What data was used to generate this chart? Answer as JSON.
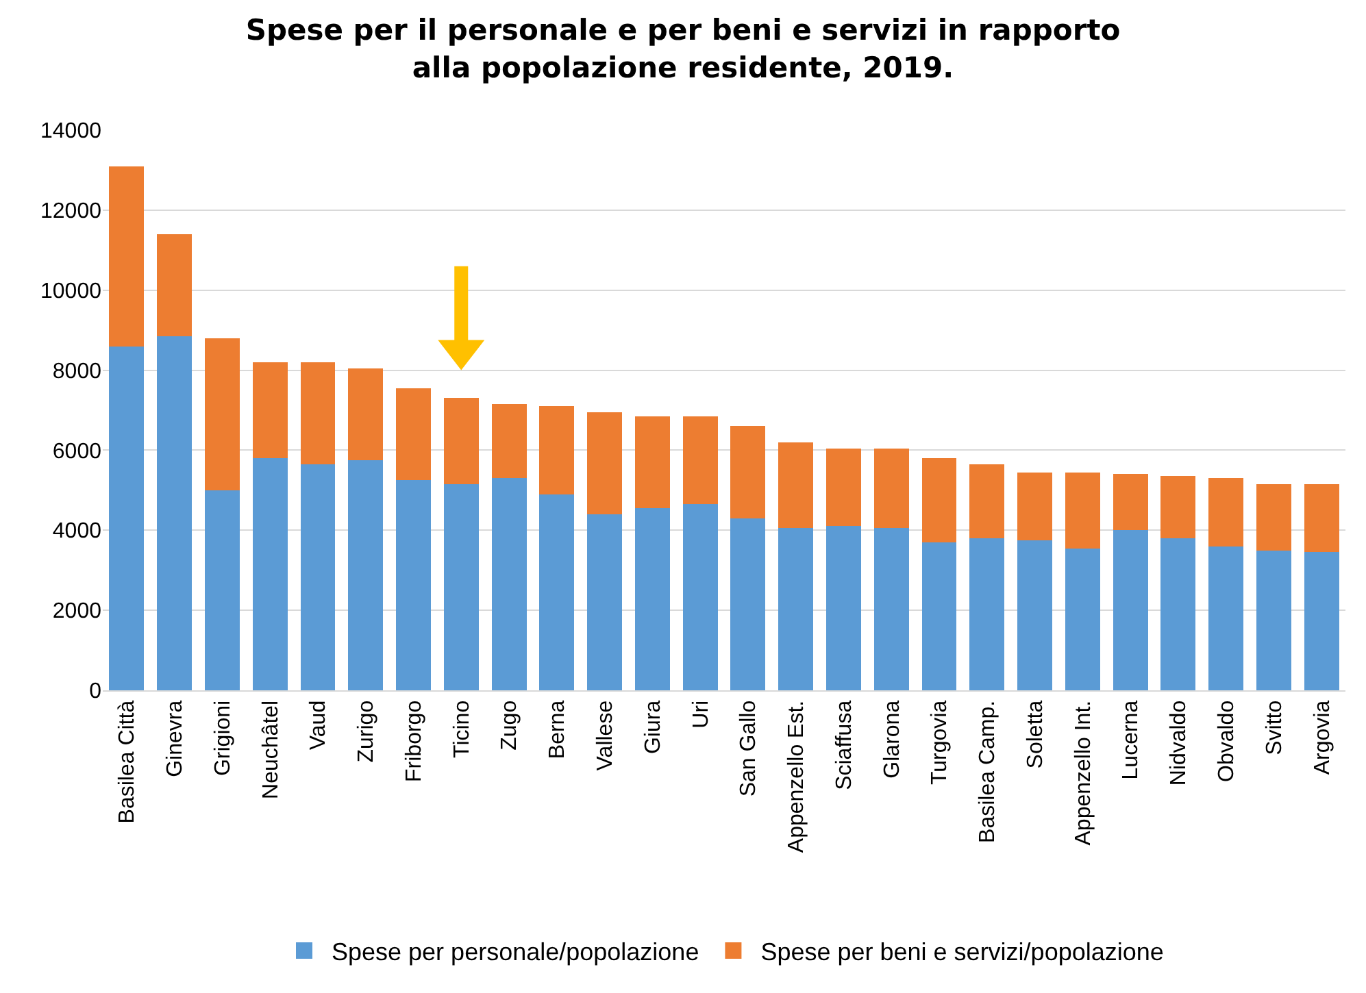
{
  "chart_data": {
    "type": "bar",
    "title": "Spese per il personale e per beni e servizi in rapporto alla popolazione residente, 2019.",
    "stacked": true,
    "categories": [
      "Basilea Città",
      "Ginevra",
      "Grigioni",
      "Neuchâtel",
      "Vaud",
      "Zurigo",
      "Friborgo",
      "Ticino",
      "Zugo",
      "Berna",
      "Vallese",
      "Giura",
      "Uri",
      "San Gallo",
      "Appenzello Est.",
      "Sciaffusa",
      "Glarona",
      "Turgovia",
      "Basilea Camp.",
      "Soletta",
      "Appenzello Int.",
      "Lucerna",
      "Nidvaldo",
      "Obvaldo",
      "Svitto",
      "Argovia"
    ],
    "series": [
      {
        "name": "Spese per personale/popolazione",
        "color": "#5b9bd5",
        "values": [
          8600,
          8850,
          5000,
          5800,
          5650,
          5750,
          5250,
          5150,
          5300,
          4900,
          4400,
          4550,
          4650,
          4300,
          4050,
          4100,
          4050,
          3700,
          3800,
          3750,
          3550,
          4000,
          3800,
          3600,
          3500,
          3450
        ]
      },
      {
        "name": "Spese per beni e servizi/popolazione",
        "color": "#ed7d31",
        "values": [
          4500,
          2550,
          3800,
          2400,
          2550,
          2300,
          2300,
          2150,
          1850,
          2200,
          2550,
          2300,
          2200,
          2300,
          2150,
          1950,
          2000,
          2100,
          1850,
          1700,
          1900,
          1400,
          1550,
          1700,
          1650,
          1700
        ]
      }
    ],
    "ylim": [
      0,
      14000
    ],
    "yticks": [
      0,
      2000,
      4000,
      6000,
      8000,
      10000,
      12000,
      14000
    ],
    "grid": "y",
    "legend": "bottom"
  }
}
